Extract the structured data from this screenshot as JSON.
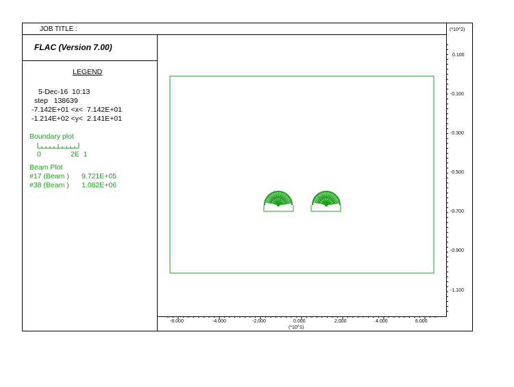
{
  "header": {
    "job_title_label": "JOB TITLE :",
    "program_title": "FLAC (Version 7.00)",
    "y_scale_label": "(*10^2)"
  },
  "legend": {
    "heading": "LEGEND",
    "date": "5-Dec-16",
    "time": "10:13",
    "step_label": "step",
    "step_value": "138639",
    "x_range": "-7.142E+01 <x<  7.142E+01",
    "y_range": "-1.214E+02 <y<  2.141E+01",
    "boundary_plot_label": "Boundary plot",
    "scale_min": "0",
    "scale_max": "2E  1",
    "beam_plot_label": "Beam Plot",
    "beams": [
      {
        "id": "#17 (Beam )",
        "value": "9.721E+05"
      },
      {
        "id": "#38 (Beam )",
        "value": "1.082E+06"
      }
    ]
  },
  "axes": {
    "x_tick_labels": [
      "-6.000",
      "-4.000",
      "-2.000",
      "0.000",
      "2.000",
      "4.000",
      "6.000"
    ],
    "x_scale_label": "(*10^1)",
    "y_tick_labels": [
      "0.100",
      "-0.100",
      "-0.300",
      "-0.500",
      "-0.700",
      "-0.900",
      "-1.100"
    ]
  },
  "colors": {
    "plot_green": "#1a9e1a",
    "frame": "#000000"
  }
}
